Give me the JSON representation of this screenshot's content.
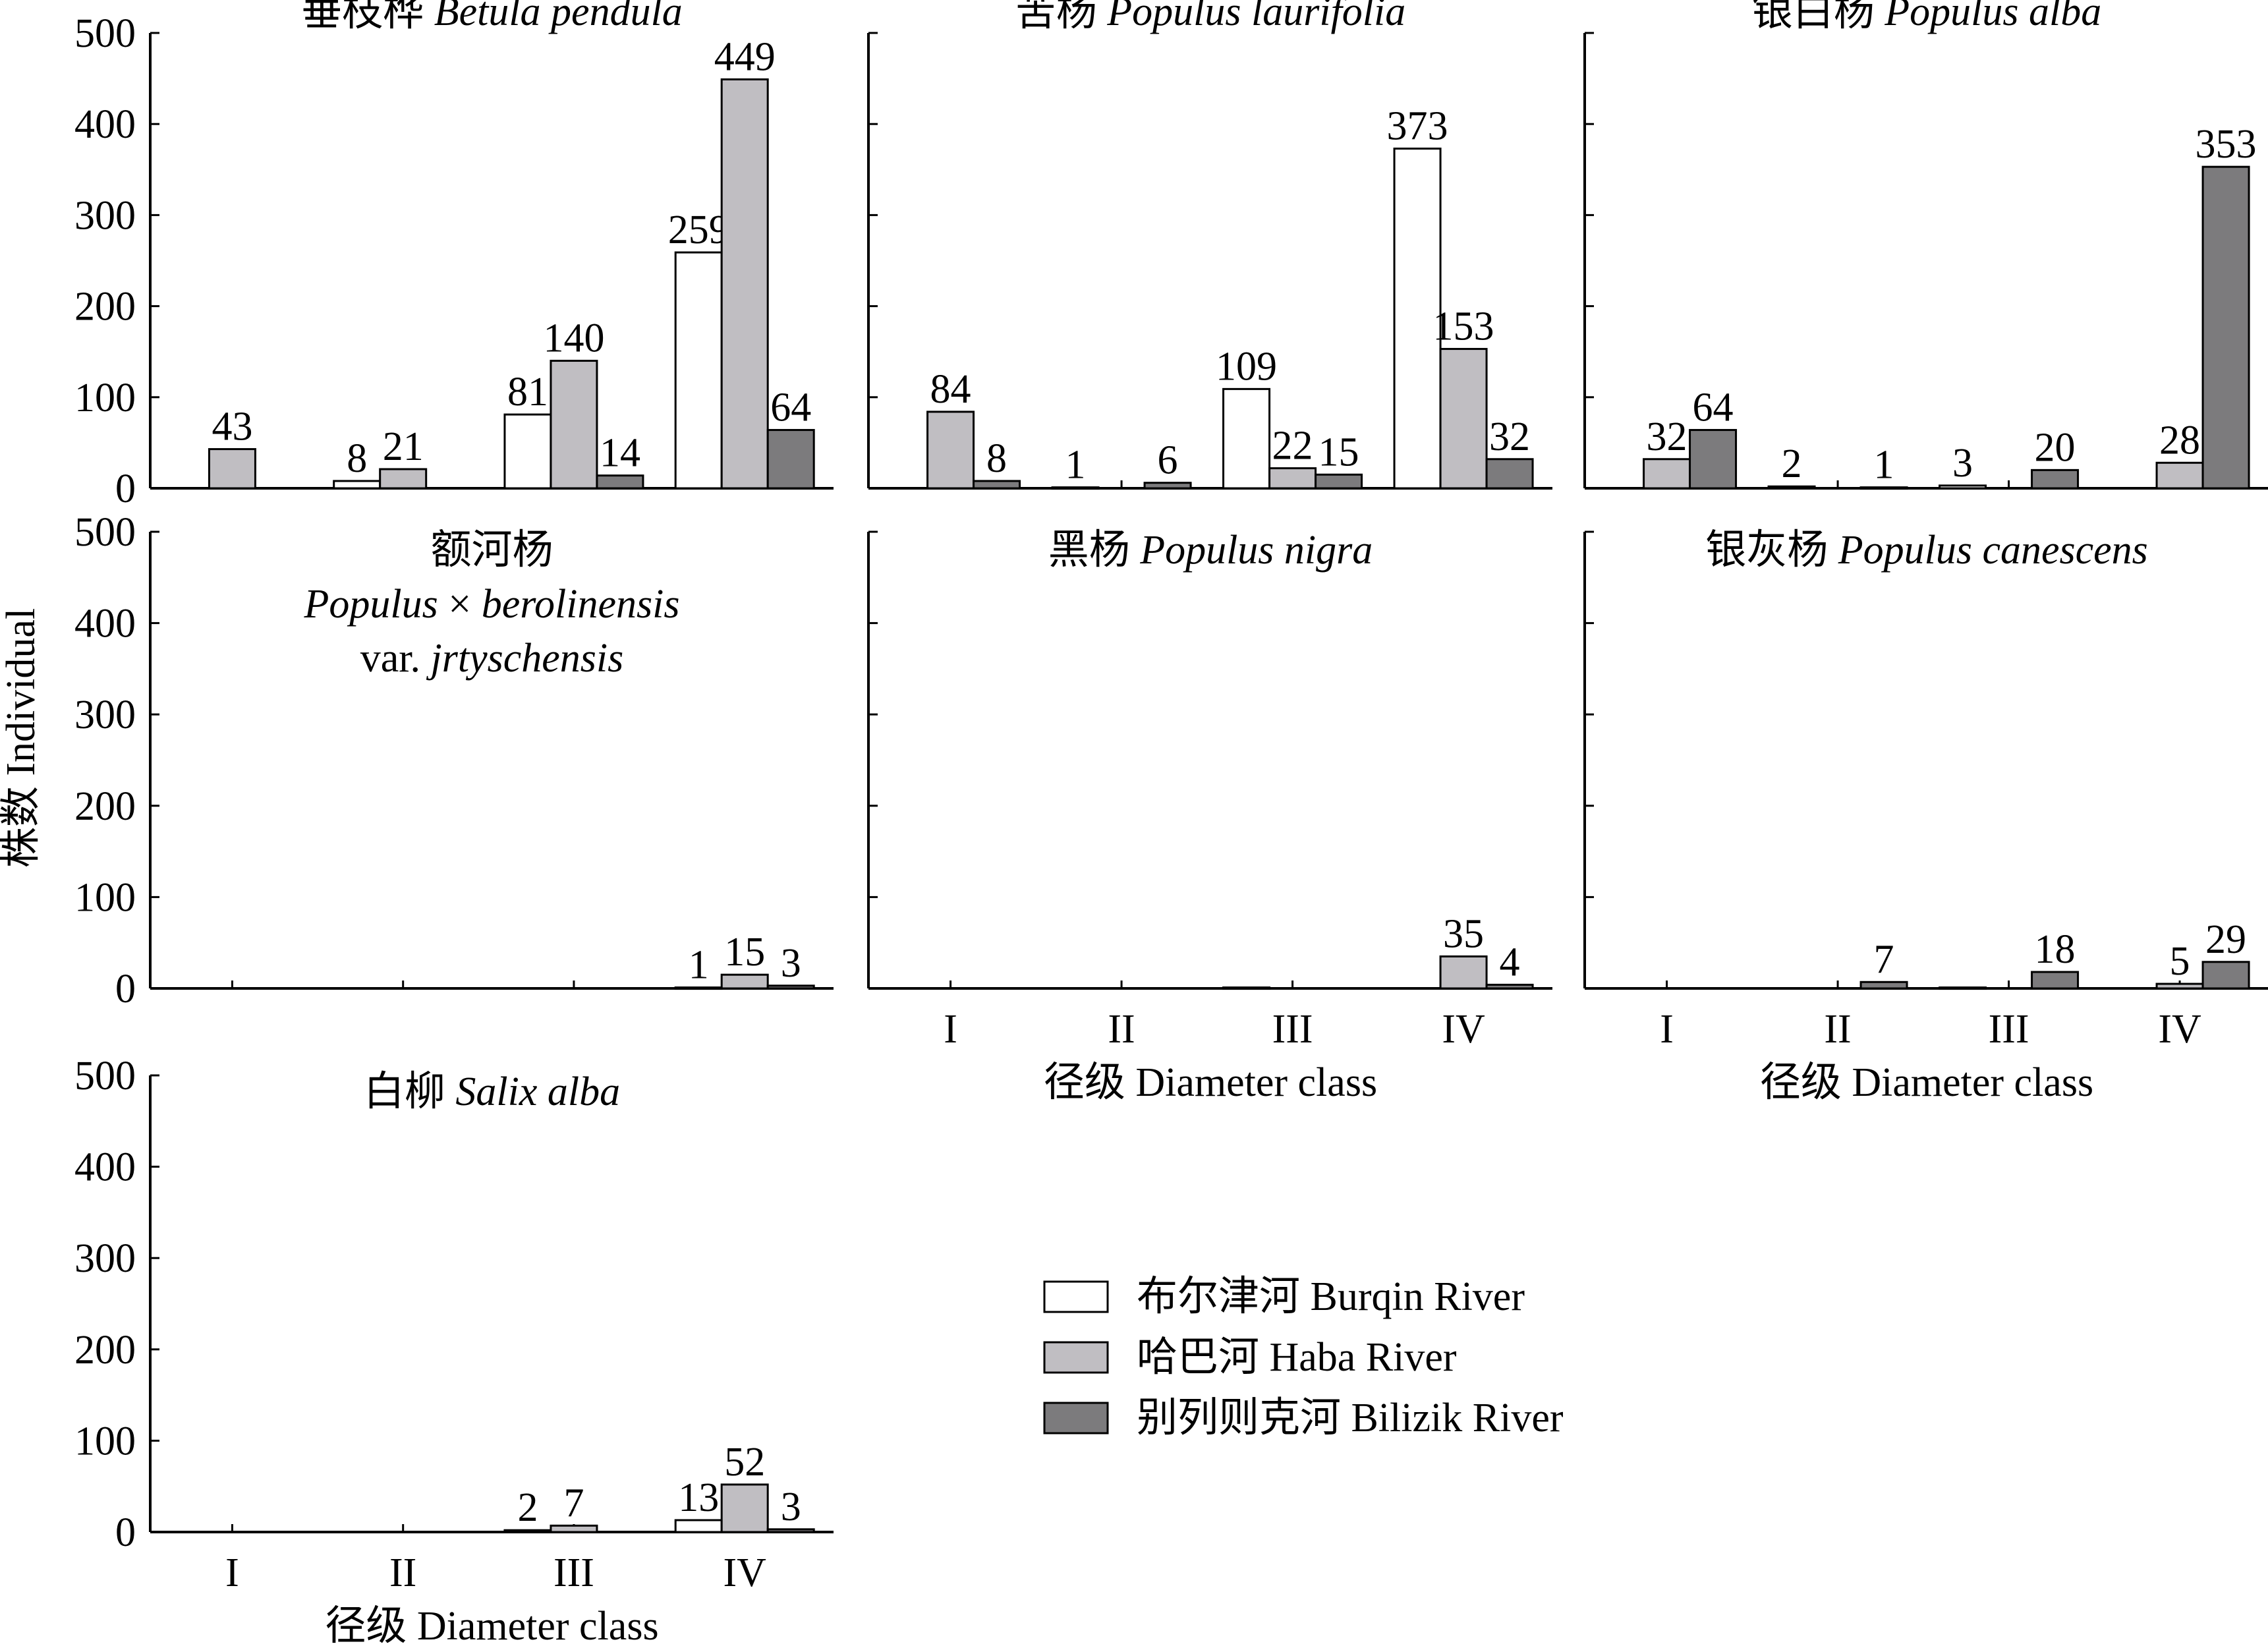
{
  "chart_data": {
    "type": "bar",
    "ylabel": "株数 Individual",
    "xlabel": "径级 Diameter class",
    "ylim": [
      0,
      500
    ],
    "yticks": [
      "0",
      "100",
      "200",
      "300",
      "400",
      "500"
    ],
    "categories": [
      "I",
      "II",
      "III",
      "IV"
    ],
    "legend_position": "center-right",
    "series": [
      {
        "name": "布尔津河 Burqin River",
        "color": "#ffffff"
      },
      {
        "name": "哈巴河 Haba River",
        "color": "#c0bec2"
      },
      {
        "name": "别列则克河 Bilizik River",
        "color": "#7c7b7d"
      }
    ],
    "panels": [
      {
        "title_lines": [
          [
            {
              "text": "垂枝桦 ",
              "italic": false
            },
            {
              "text": "Betula pendula",
              "italic": true
            }
          ]
        ],
        "values": [
          [
            0,
            8,
            81,
            259
          ],
          [
            43,
            21,
            140,
            449
          ],
          [
            0,
            0,
            14,
            64
          ]
        ],
        "labels": [
          [
            "",
            "8",
            "81",
            "259"
          ],
          [
            "43",
            "21",
            "140",
            "449"
          ],
          [
            "",
            "",
            "14",
            "64"
          ]
        ]
      },
      {
        "title_lines": [
          [
            {
              "text": "苦杨 ",
              "italic": false
            },
            {
              "text": "Populus laurifolia",
              "italic": true
            }
          ]
        ],
        "values": [
          [
            0,
            1,
            109,
            373
          ],
          [
            84,
            0,
            22,
            153
          ],
          [
            8,
            6,
            15,
            32
          ]
        ],
        "labels": [
          [
            "",
            "1",
            "109",
            "373"
          ],
          [
            "84",
            "",
            "22",
            "153"
          ],
          [
            "8",
            "6",
            "15",
            "32"
          ]
        ]
      },
      {
        "title_lines": [
          [
            {
              "text": "银白杨 ",
              "italic": false
            },
            {
              "text": "Populus alba",
              "italic": true
            }
          ]
        ],
        "values": [
          [
            0,
            2,
            3,
            0
          ],
          [
            32,
            0,
            0,
            28
          ],
          [
            64,
            1,
            20,
            353
          ]
        ],
        "labels": [
          [
            "",
            "2",
            "3",
            ""
          ],
          [
            "32",
            "",
            "",
            "28"
          ],
          [
            "64",
            "1",
            "20",
            "353"
          ]
        ]
      },
      {
        "title_lines": [
          [
            {
              "text": "额河杨",
              "italic": false
            }
          ],
          [
            {
              "text": "Populus",
              "italic": true
            },
            {
              "text": " × ",
              "italic": false
            },
            {
              "text": "berolinensis",
              "italic": true
            }
          ],
          [
            {
              "text": "var. ",
              "italic": false
            },
            {
              "text": "jrtyschensis",
              "italic": true
            }
          ]
        ],
        "values": [
          [
            0,
            0,
            0,
            1
          ],
          [
            0,
            0,
            0,
            15
          ],
          [
            0,
            0,
            0,
            3
          ]
        ],
        "labels": [
          [
            "",
            "",
            "",
            "1"
          ],
          [
            "",
            "",
            "",
            "15"
          ],
          [
            "",
            "",
            "",
            "3"
          ]
        ]
      },
      {
        "title_lines": [
          [
            {
              "text": "黑杨 ",
              "italic": false
            },
            {
              "text": "Populus nigra",
              "italic": true
            }
          ]
        ],
        "values": [
          [
            0,
            0,
            1,
            0
          ],
          [
            0,
            0,
            0,
            35
          ],
          [
            0,
            0,
            0,
            4
          ]
        ],
        "labels": [
          [
            "",
            "",
            "",
            ""
          ],
          [
            "",
            "",
            "",
            "35"
          ],
          [
            "",
            "",
            "",
            "4"
          ]
        ]
      },
      {
        "title_lines": [
          [
            {
              "text": "银灰杨 ",
              "italic": false
            },
            {
              "text": "Populus canescens",
              "italic": true
            }
          ]
        ],
        "values": [
          [
            0,
            0,
            1,
            0
          ],
          [
            0,
            0,
            0,
            5
          ],
          [
            0,
            7,
            18,
            29
          ]
        ],
        "labels": [
          [
            "",
            "",
            "",
            ""
          ],
          [
            "",
            "",
            "",
            "5"
          ],
          [
            "",
            "7",
            "18",
            "29"
          ]
        ]
      },
      {
        "title_lines": [
          [
            {
              "text": "白柳 ",
              "italic": false
            },
            {
              "text": "Salix alba",
              "italic": true
            }
          ]
        ],
        "values": [
          [
            0,
            0,
            2,
            13
          ],
          [
            0,
            0,
            7,
            52
          ],
          [
            0,
            0,
            0,
            3
          ]
        ],
        "labels": [
          [
            "",
            "",
            "2",
            "13"
          ],
          [
            "",
            "",
            "7",
            "52"
          ],
          [
            "",
            "",
            "",
            "3"
          ]
        ]
      }
    ]
  }
}
